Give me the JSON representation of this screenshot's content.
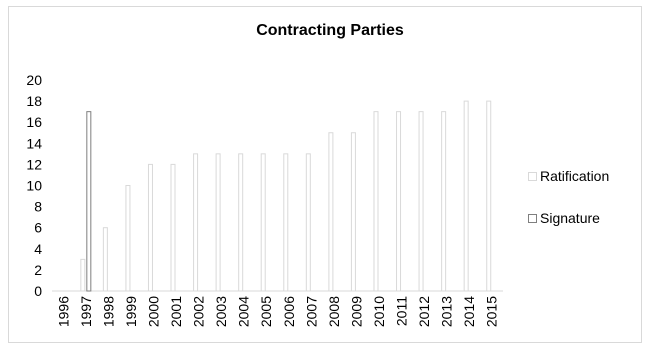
{
  "chart_data": {
    "type": "bar",
    "title": "Contracting Parties",
    "categories": [
      "1996",
      "1997",
      "1998",
      "1999",
      "2000",
      "2001",
      "2002",
      "2003",
      "2004",
      "2005",
      "2006",
      "2007",
      "2008",
      "2009",
      "2010",
      "2011",
      "2012",
      "2013",
      "2014",
      "2015"
    ],
    "series": [
      {
        "name": "Ratification",
        "values": [
          0,
          3,
          6,
          10,
          12,
          12,
          13,
          13,
          13,
          13,
          13,
          13,
          15,
          15,
          17,
          17,
          17,
          17,
          18,
          18
        ],
        "color": "#d9d9d9"
      },
      {
        "name": "Signature",
        "values": [
          0,
          17,
          0,
          0,
          0,
          0,
          0,
          0,
          0,
          0,
          0,
          0,
          0,
          0,
          0,
          0,
          0,
          0,
          0,
          0
        ],
        "color": "#7f7f7f"
      }
    ],
    "yticks": [
      0,
      2,
      4,
      6,
      8,
      10,
      12,
      14,
      16,
      18,
      20
    ],
    "ylim": [
      0,
      20
    ],
    "grid": false,
    "legend_position": "right"
  }
}
